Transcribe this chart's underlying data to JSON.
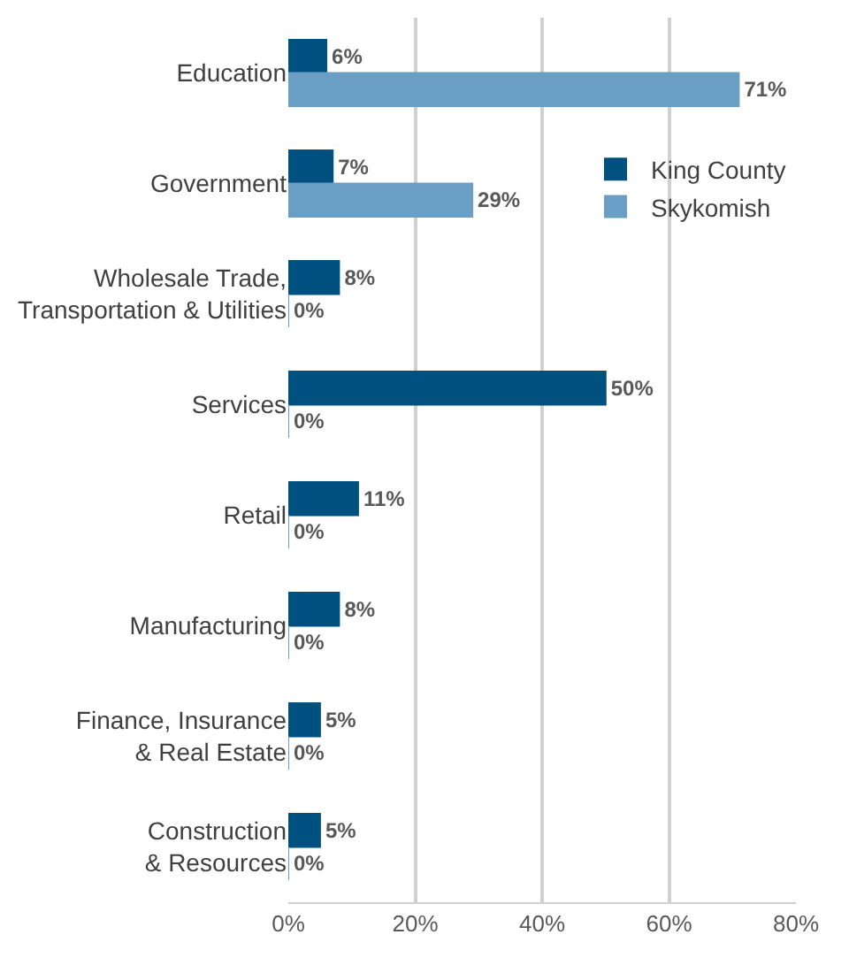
{
  "chart_data": {
    "type": "bar",
    "orientation": "horizontal",
    "categories": [
      "Education",
      "Government",
      "Wholesale Trade,\nTransportation & Utilities",
      "Services",
      "Retail",
      "Manufacturing",
      "Finance, Insurance\n& Real Estate",
      "Construction\n& Resources"
    ],
    "series": [
      {
        "name": "King County",
        "color": "#00517f",
        "values": [
          6,
          7,
          8,
          50,
          11,
          8,
          5,
          5
        ],
        "value_labels": [
          "6%",
          "7%",
          "8%",
          "50%",
          "11%",
          "8%",
          "5%",
          "5%"
        ]
      },
      {
        "name": "Skykomish",
        "color": "#6a9ec4",
        "values": [
          71,
          29,
          0,
          0,
          0,
          0,
          0,
          0
        ],
        "value_labels": [
          "71%",
          "29%",
          "0%",
          "0%",
          "0%",
          "0%",
          "0%",
          "0%"
        ]
      }
    ],
    "xlim": [
      0,
      80
    ],
    "xticks": [
      {
        "value": 0,
        "label": "0%"
      },
      {
        "value": 20,
        "label": "20%"
      },
      {
        "value": 40,
        "label": "40%"
      },
      {
        "value": 60,
        "label": "60%"
      },
      {
        "value": 80,
        "label": "80%"
      }
    ],
    "grid": "x",
    "legend": "top right"
  }
}
